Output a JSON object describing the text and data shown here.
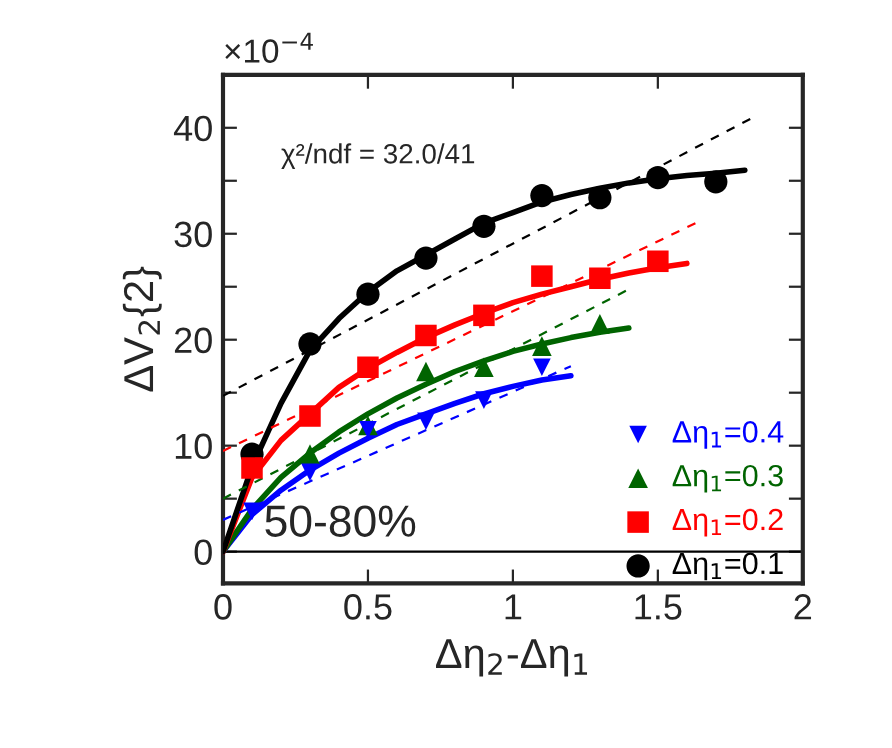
{
  "chart_data": {
    "type": "scatter",
    "xlabel": "Δη$_{2}$-Δη$_{1}$",
    "ylabel": "ΔV$_{2}${2}",
    "annotations": [
      "×10$^{−4}$",
      "χ²/ndf = 32.0/41",
      "50-80%"
    ],
    "xlim": [
      0,
      2
    ],
    "ylim": [
      -3,
      45
    ],
    "xticks": [
      0,
      0.5,
      1,
      1.5,
      2
    ],
    "yticks": [
      0,
      {
        "value": 5,
        "label": null
      },
      10,
      {
        "value": 15,
        "label": null
      },
      20,
      {
        "value": 25,
        "label": null
      },
      30,
      {
        "value": 35,
        "label": null
      },
      40
    ],
    "legend": "bottom right",
    "grid": false,
    "ref_lines": [
      {
        "axis": "y",
        "value": 0,
        "color": "#000000",
        "line_style": "solid"
      }
    ],
    "series": [
      {
        "name": "Δη$_{1}$=0.4",
        "color": "#0000ff",
        "marker": "triangle_down",
        "x": [
          0.1,
          0.3,
          0.5,
          0.7,
          0.9,
          1.1
        ],
        "values": [
          3.8,
          7.5,
          11.5,
          12.3,
          14.3,
          17.4
        ]
      },
      {
        "name": "Δη$_{1}$=0.3",
        "color": "#006400",
        "marker": "triangle",
        "x": [
          0.3,
          0.5,
          0.7,
          0.9,
          1.1,
          1.3
        ],
        "values": [
          9.2,
          11.9,
          17.0,
          17.4,
          19.4,
          21.5
        ]
      },
      {
        "name": "Δη$_{1}$=0.2",
        "color": "#ff0000",
        "marker": "square",
        "x": [
          0.1,
          0.3,
          0.5,
          0.7,
          0.9,
          1.1,
          1.3,
          1.5
        ],
        "values": [
          7.9,
          12.8,
          17.4,
          20.4,
          22.3,
          26.0,
          25.8,
          27.4
        ]
      },
      {
        "name": "Δη$_{1}$=0.1",
        "color": "#000000",
        "marker": "circle",
        "x": [
          0.1,
          0.3,
          0.5,
          0.7,
          0.9,
          1.1,
          1.3,
          1.5,
          1.7
        ],
        "values": [
          9.2,
          19.6,
          24.3,
          27.7,
          30.7,
          33.6,
          33.4,
          35.3,
          34.9
        ]
      },
      {
        "type": "line",
        "color": "#0000ff",
        "line_style": "solid",
        "x": [
          0,
          0.1,
          0.2,
          0.3,
          0.4,
          0.5,
          0.6,
          0.7,
          0.8,
          0.9,
          1.0,
          1.1,
          1.2
        ],
        "values": [
          0,
          3.5,
          5.8,
          7.7,
          9.3,
          10.7,
          12,
          13,
          14,
          14.9,
          15.6,
          16.2,
          16.6
        ]
      },
      {
        "type": "line",
        "color": "#006400",
        "line_style": "solid",
        "x": [
          0,
          0.1,
          0.2,
          0.3,
          0.4,
          0.5,
          0.6,
          0.7,
          0.8,
          0.9,
          1.0,
          1.1,
          1.2,
          1.3,
          1.4
        ],
        "values": [
          0,
          4,
          7,
          9.3,
          11.3,
          13,
          14.5,
          15.8,
          17,
          18,
          18.9,
          19.6,
          20.2,
          20.7,
          21.1
        ]
      },
      {
        "type": "line",
        "color": "#ff0000",
        "line_style": "solid",
        "x": [
          0,
          0.1,
          0.2,
          0.3,
          0.4,
          0.5,
          0.6,
          0.7,
          0.8,
          0.9,
          1.0,
          1.1,
          1.2,
          1.3,
          1.4,
          1.5,
          1.6
        ],
        "values": [
          0,
          7,
          10.5,
          13,
          15.5,
          17.3,
          18.8,
          20.2,
          21.4,
          22.5,
          23.5,
          24.3,
          25,
          25.7,
          26.3,
          26.8,
          27.2
        ]
      },
      {
        "type": "line",
        "color": "#000000",
        "line_style": "solid",
        "x": [
          0,
          0.1,
          0.2,
          0.3,
          0.4,
          0.5,
          0.6,
          0.7,
          0.8,
          0.9,
          1.0,
          1.1,
          1.2,
          1.3,
          1.4,
          1.5,
          1.6,
          1.7,
          1.8
        ],
        "values": [
          0,
          8,
          14,
          19,
          22,
          24.5,
          26.5,
          28,
          29.5,
          31,
          32,
          33,
          33.7,
          34.3,
          34.8,
          35.2,
          35.5,
          35.7,
          36
        ]
      },
      {
        "type": "line",
        "color": "#0000ff",
        "line_style": "dashed",
        "x": [
          0,
          1.2
        ],
        "values": [
          3,
          17.5
        ]
      },
      {
        "type": "line",
        "color": "#006400",
        "line_style": "dashed",
        "x": [
          0,
          1.41
        ],
        "values": [
          5,
          24.9
        ]
      },
      {
        "type": "line",
        "color": "#ff0000",
        "line_style": "dashed",
        "x": [
          0,
          1.63
        ],
        "values": [
          9.5,
          31
        ]
      },
      {
        "type": "line",
        "color": "#000000",
        "line_style": "dashed",
        "x": [
          0,
          1.83
        ],
        "values": [
          14.7,
          41
        ]
      }
    ]
  }
}
